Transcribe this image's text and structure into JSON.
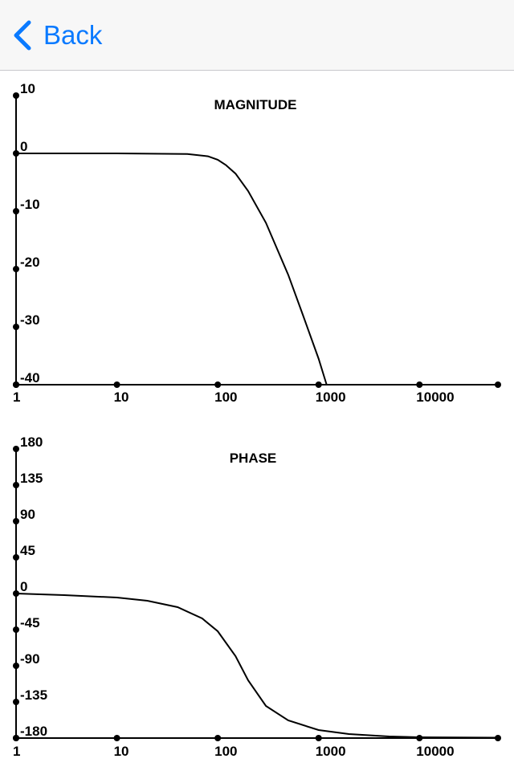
{
  "nav": {
    "back_label": "Back",
    "accent_color": "#0a7aff",
    "back_icon": "chevron-left-icon"
  },
  "chart_data": [
    {
      "type": "line",
      "title": "MAGNITUDE",
      "xscale": "log",
      "xlim": [
        1,
        60000
      ],
      "ylim": [
        -40,
        10
      ],
      "xticks": [
        1,
        10,
        100,
        1000,
        10000,
        60000
      ],
      "xtick_labels": [
        "1",
        "10",
        "100",
        "1000",
        "10000",
        ""
      ],
      "yticks": [
        10,
        0,
        -10,
        -20,
        -30,
        -40
      ],
      "ytick_labels": [
        "10",
        "0",
        "-10",
        "-20",
        "-30",
        "-40"
      ],
      "series": [
        {
          "x": [
            1,
            10,
            50,
            80,
            100,
            120,
            150,
            200,
            300,
            500,
            700,
            1000,
            1200
          ],
          "y": [
            0,
            0,
            -0.1,
            -0.5,
            -1.1,
            -2.0,
            -3.5,
            -6.5,
            -12,
            -21,
            -28,
            -35.5,
            -40
          ]
        }
      ]
    },
    {
      "type": "line",
      "title": "PHASE",
      "xscale": "log",
      "xlim": [
        1,
        60000
      ],
      "ylim": [
        -180,
        180
      ],
      "xticks": [
        1,
        10,
        100,
        1000,
        10000,
        60000
      ],
      "xtick_labels": [
        "1",
        "10",
        "100",
        "1000",
        "10000",
        ""
      ],
      "yticks": [
        180,
        135,
        90,
        45,
        0,
        -45,
        -90,
        -135,
        -180
      ],
      "ytick_labels": [
        "180",
        "135",
        "90",
        "45",
        "0",
        "-45",
        "-90",
        "-135",
        "-180"
      ],
      "series": [
        {
          "x": [
            1,
            3,
            10,
            20,
            40,
            70,
            100,
            150,
            200,
            300,
            500,
            1000,
            2000,
            5000,
            10000,
            60000
          ],
          "y": [
            0,
            -2,
            -5,
            -9,
            -17,
            -31,
            -47,
            -78,
            -108,
            -140,
            -158,
            -170,
            -175,
            -178,
            -179,
            -179.5
          ]
        }
      ]
    }
  ]
}
